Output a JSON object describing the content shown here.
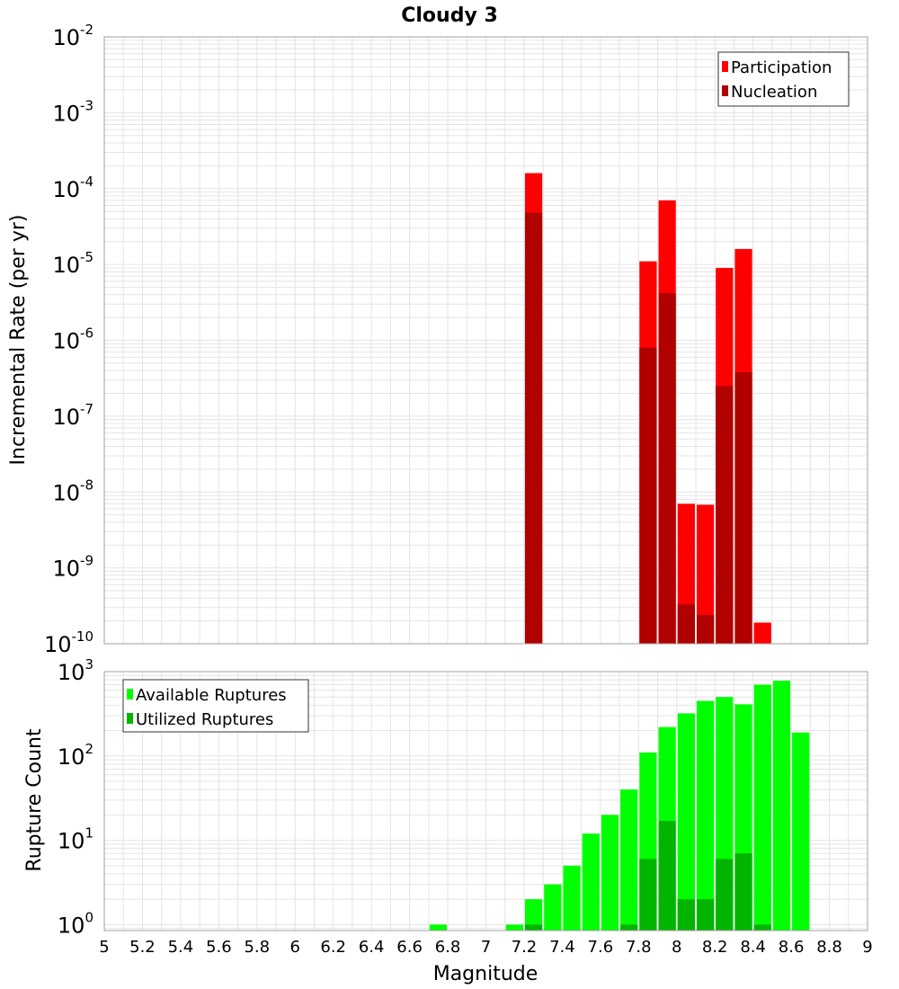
{
  "title": "Cloudy 3",
  "xlabel": "Magnitude",
  "x_ticks": [
    "5",
    "5.2",
    "5.4",
    "5.6",
    "5.8",
    "6",
    "6.2",
    "6.4",
    "6.6",
    "6.8",
    "7",
    "7.2",
    "7.4",
    "7.6",
    "7.8",
    "8",
    "8.2",
    "8.4",
    "8.6",
    "8.8",
    "9"
  ],
  "colors": {
    "participation": "#ff0000",
    "nucleation": "#b00000",
    "available": "#00ff00",
    "utilized": "#00b400",
    "grid": "#e4e4e4",
    "frame": "#a0a0a0"
  },
  "chart_data": [
    {
      "type": "bar",
      "ylabel": "Incremental Rate (per yr)",
      "yscale": "log",
      "ylim": [
        1e-10,
        0.01
      ],
      "xlim": [
        5,
        9
      ],
      "bin_width": 0.1,
      "y_tick_labels": [
        {
          "base": "10",
          "exp": "-2"
        },
        {
          "base": "10",
          "exp": "-3"
        },
        {
          "base": "10",
          "exp": "-4"
        },
        {
          "base": "10",
          "exp": "-5"
        },
        {
          "base": "10",
          "exp": "-6"
        },
        {
          "base": "10",
          "exp": "-7"
        },
        {
          "base": "10",
          "exp": "-8"
        },
        {
          "base": "10",
          "exp": "-9"
        },
        {
          "base": "10",
          "exp": "-10"
        }
      ],
      "legend": {
        "position": "top-right",
        "entries": [
          "Participation",
          "Nucleation"
        ]
      },
      "series": [
        {
          "name": "Participation",
          "points": [
            {
              "x": 7.25,
              "y": 0.00016
            },
            {
              "x": 7.85,
              "y": 1.1e-05
            },
            {
              "x": 7.95,
              "y": 7e-05
            },
            {
              "x": 8.05,
              "y": 7e-09
            },
            {
              "x": 8.15,
              "y": 6.8e-09
            },
            {
              "x": 8.25,
              "y": 9e-06
            },
            {
              "x": 8.35,
              "y": 1.6e-05
            },
            {
              "x": 8.45,
              "y": 1.9e-10
            }
          ]
        },
        {
          "name": "Nucleation",
          "points": [
            {
              "x": 7.25,
              "y": 4.8e-05
            },
            {
              "x": 7.85,
              "y": 8e-07
            },
            {
              "x": 7.95,
              "y": 4.2e-06
            },
            {
              "x": 8.05,
              "y": 3.3e-10
            },
            {
              "x": 8.15,
              "y": 2.4e-10
            },
            {
              "x": 8.25,
              "y": 2.5e-07
            },
            {
              "x": 8.35,
              "y": 3.8e-07
            }
          ]
        }
      ]
    },
    {
      "type": "bar",
      "ylabel": "Rupture Count",
      "yscale": "log",
      "ylim": [
        0.85,
        1000
      ],
      "xlim": [
        5,
        9
      ],
      "bin_width": 0.1,
      "y_tick_labels": [
        {
          "base": "10",
          "exp": "3"
        },
        {
          "base": "10",
          "exp": "2"
        },
        {
          "base": "10",
          "exp": "1"
        },
        {
          "base": "10",
          "exp": "0"
        }
      ],
      "legend": {
        "position": "top-left",
        "entries": [
          "Available Ruptures",
          "Utilized Ruptures"
        ]
      },
      "series": [
        {
          "name": "Available Ruptures",
          "points": [
            {
              "x": 6.75,
              "y": 1
            },
            {
              "x": 7.15,
              "y": 1
            },
            {
              "x": 7.25,
              "y": 2
            },
            {
              "x": 7.35,
              "y": 3
            },
            {
              "x": 7.45,
              "y": 5
            },
            {
              "x": 7.55,
              "y": 12
            },
            {
              "x": 7.65,
              "y": 20
            },
            {
              "x": 7.75,
              "y": 40
            },
            {
              "x": 7.85,
              "y": 110
            },
            {
              "x": 7.95,
              "y": 220
            },
            {
              "x": 8.05,
              "y": 320
            },
            {
              "x": 8.15,
              "y": 450
            },
            {
              "x": 8.25,
              "y": 500
            },
            {
              "x": 8.35,
              "y": 410
            },
            {
              "x": 8.45,
              "y": 700
            },
            {
              "x": 8.55,
              "y": 780
            },
            {
              "x": 8.65,
              "y": 190
            }
          ]
        },
        {
          "name": "Utilized Ruptures",
          "points": [
            {
              "x": 7.25,
              "y": 1
            },
            {
              "x": 7.75,
              "y": 1
            },
            {
              "x": 7.85,
              "y": 6
            },
            {
              "x": 7.95,
              "y": 17
            },
            {
              "x": 8.05,
              "y": 2
            },
            {
              "x": 8.15,
              "y": 2
            },
            {
              "x": 8.25,
              "y": 6
            },
            {
              "x": 8.35,
              "y": 7
            },
            {
              "x": 8.45,
              "y": 1
            }
          ]
        }
      ]
    }
  ]
}
